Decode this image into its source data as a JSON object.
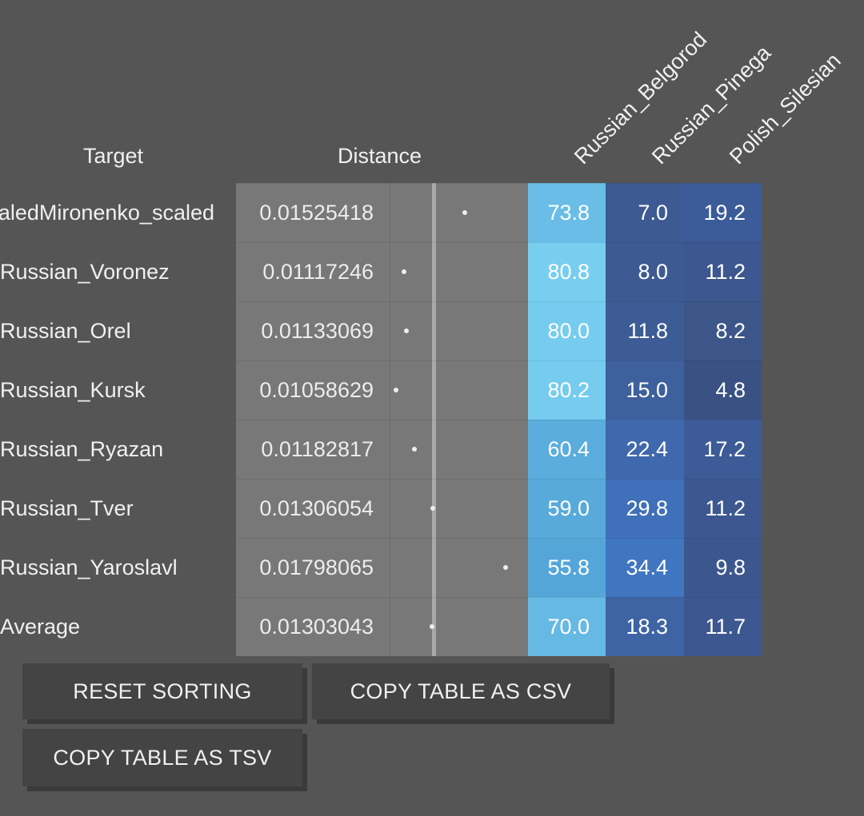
{
  "headers": {
    "target": "Target",
    "distance": "Distance",
    "populations": [
      "Russian_Belgorod",
      "Russian_Pinega",
      "Polish_Silesian"
    ]
  },
  "distance_axis_value": 0.01303043,
  "rows": [
    {
      "target": "Kuban_Cossack_ScaledMironenko_scaled",
      "distance": "0.01525418",
      "distance_value": 0.01525418,
      "values": [
        "73.8",
        "7.0",
        "19.2"
      ],
      "colors": [
        "#69bde6",
        "#3d5a92",
        "#3b5c98"
      ]
    },
    {
      "target": "Russian_Voronez",
      "distance": "0.01117246",
      "distance_value": 0.01117246,
      "values": [
        "80.8",
        "8.0",
        "11.2"
      ],
      "colors": [
        "#78ceef",
        "#3d5a92",
        "#3d5890"
      ]
    },
    {
      "target": "Russian_Orel",
      "distance": "0.01133069",
      "distance_value": 0.01133069,
      "values": [
        "80.0",
        "11.8",
        "8.2"
      ],
      "colors": [
        "#76ccee",
        "#3d5c96",
        "#3c5689"
      ]
    },
    {
      "target": "Russian_Kursk",
      "distance": "0.01058629",
      "distance_value": 0.01058629,
      "values": [
        "80.2",
        "15.0",
        "4.8"
      ],
      "colors": [
        "#76ccef",
        "#3e609d",
        "#3a5283"
      ]
    },
    {
      "target": "Russian_Ryazan",
      "distance": "0.01182817",
      "distance_value": 0.01182817,
      "values": [
        "60.4",
        "22.4",
        "17.2"
      ],
      "colors": [
        "#5aaddc",
        "#4068ac",
        "#3c5b97"
      ]
    },
    {
      "target": "Russian_Tver",
      "distance": "0.01306054",
      "distance_value": 0.01306054,
      "values": [
        "59.0",
        "29.8",
        "11.2"
      ],
      "colors": [
        "#58aada",
        "#4070b9",
        "#3d5890"
      ]
    },
    {
      "target": "Russian_Yaroslavl",
      "distance": "0.01798065",
      "distance_value": 0.01798065,
      "values": [
        "55.8",
        "34.4",
        "9.8"
      ],
      "colors": [
        "#55a6d8",
        "#4075c0",
        "#3c578d"
      ]
    },
    {
      "target": "Average",
      "distance": "0.01303043",
      "distance_value": 0.01303043,
      "values": [
        "70.0",
        "18.3",
        "11.7"
      ],
      "colors": [
        "#66b9e3",
        "#3f64a4",
        "#3d5890"
      ]
    }
  ],
  "buttons": {
    "reset_sorting": "RESET SORTING",
    "copy_csv": "COPY TABLE AS CSV",
    "copy_tsv": "COPY TABLE AS TSV"
  }
}
